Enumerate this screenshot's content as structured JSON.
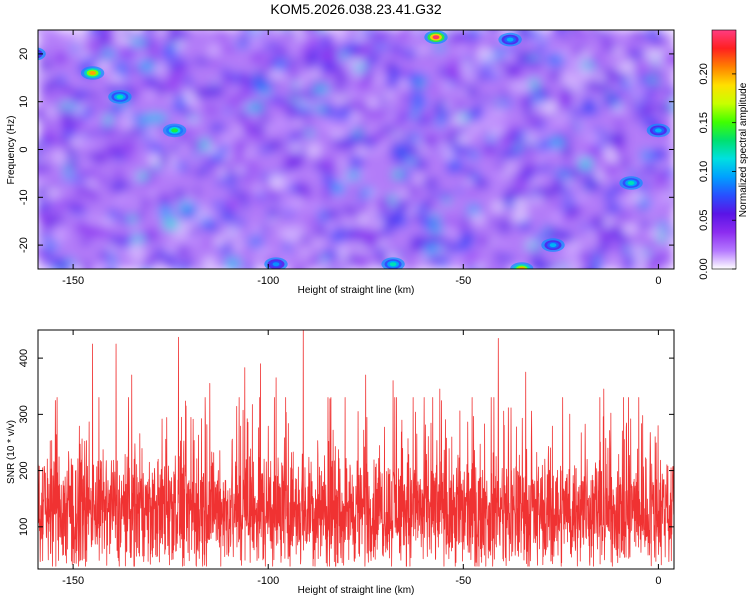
{
  "title": "KOM5.2026.038.23.41.G32",
  "chart_data": [
    {
      "type": "heatmap",
      "xlabel": "Height of straight line (km)",
      "ylabel": "Frequency (Hz)",
      "xlim": [
        -159,
        4
      ],
      "ylim": [
        -25,
        25
      ],
      "xticks": [
        -150,
        -100,
        -50,
        0
      ],
      "yticks": [
        -20,
        -10,
        0,
        10,
        20
      ],
      "colorbar": {
        "label": "Normalized spectral amplitude",
        "range": [
          0,
          0.245
        ],
        "ticks": [
          "0.00",
          "0.05",
          "0.10",
          "0.15",
          "0.20"
        ],
        "tick_values": [
          0,
          0.05,
          0.1,
          0.15,
          0.2
        ],
        "colors": [
          "#ffffff",
          "#b478ff",
          "#8c2cf0",
          "#5a14e6",
          "#2850ff",
          "#00a0ff",
          "#00e0e0",
          "#00e070",
          "#40ff00",
          "#c8ff00",
          "#ffe000",
          "#ff8000",
          "#ff2020",
          "#ff3c82"
        ]
      },
      "hotspots": [
        {
          "x": -145,
          "y": 16,
          "v": 0.2
        },
        {
          "x": -57,
          "y": 23.5,
          "v": 0.24
        },
        {
          "x": -35,
          "y": -25,
          "v": 0.2
        },
        {
          "x": -124,
          "y": 4,
          "v": 0.14
        },
        {
          "x": -138,
          "y": 11,
          "v": 0.12
        },
        {
          "x": -7,
          "y": -7,
          "v": 0.12
        },
        {
          "x": -68,
          "y": -24,
          "v": 0.12
        },
        {
          "x": -27,
          "y": -20,
          "v": 0.1
        },
        {
          "x": -160,
          "y": 20,
          "v": 0.1
        },
        {
          "x": -38,
          "y": 23,
          "v": 0.1
        },
        {
          "x": 0,
          "y": 4,
          "v": 0.1
        },
        {
          "x": -98,
          "y": -24,
          "v": 0.09
        }
      ]
    },
    {
      "type": "line",
      "xlabel": "Height of straight line (km)",
      "ylabel": "SNR (10 * v/v)",
      "xlim": [
        -159,
        4
      ],
      "ylim": [
        25,
        450
      ],
      "xticks": [
        -150,
        -100,
        -50,
        0
      ],
      "yticks": [
        100,
        200,
        300,
        400
      ],
      "line_color": "#f03232",
      "noise_mean": 130,
      "peaks": [
        {
          "x": -145,
          "y": 425
        },
        {
          "x": -139,
          "y": 425
        },
        {
          "x": -123,
          "y": 437
        },
        {
          "x": -106,
          "y": 383
        },
        {
          "x": -102,
          "y": 390
        },
        {
          "x": -98,
          "y": 365
        },
        {
          "x": -91,
          "y": 450
        },
        {
          "x": -41,
          "y": 435
        },
        {
          "x": -34,
          "y": 375
        },
        {
          "x": -135,
          "y": 370
        },
        {
          "x": -115,
          "y": 355
        },
        {
          "x": -75,
          "y": 370
        },
        {
          "x": -68,
          "y": 360
        },
        {
          "x": -56,
          "y": 345
        },
        {
          "x": -14,
          "y": 345
        }
      ]
    }
  ]
}
